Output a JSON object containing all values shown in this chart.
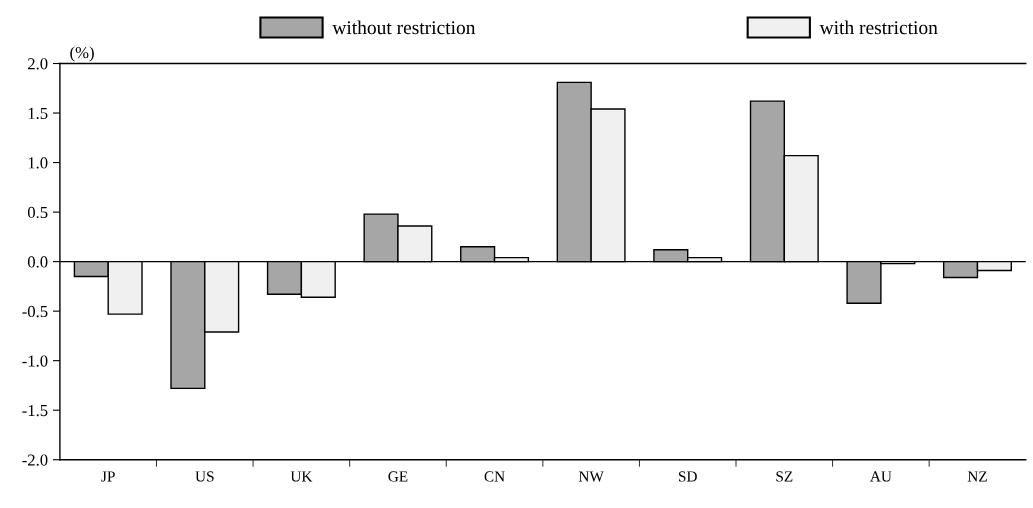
{
  "chart_data": {
    "type": "bar",
    "ylabel": "(%)",
    "categories": [
      "JP",
      "US",
      "UK",
      "GE",
      "CN",
      "NW",
      "SD",
      "SZ",
      "AU",
      "NZ"
    ],
    "series": [
      {
        "name": "without restriction",
        "color": "#a6a6a6",
        "values": [
          -0.15,
          -1.28,
          -0.33,
          0.48,
          0.15,
          1.81,
          0.12,
          1.62,
          -0.42,
          -0.16
        ]
      },
      {
        "name": "with restriction",
        "color": "#f0f0f0",
        "values": [
          -0.53,
          -0.71,
          -0.36,
          0.36,
          0.04,
          1.54,
          0.04,
          1.07,
          -0.02,
          -0.09
        ]
      }
    ],
    "ylim": [
      -2.0,
      2.0
    ],
    "yticks": [
      {
        "value": -2.0,
        "label": "-2.0"
      },
      {
        "value": -1.5,
        "label": "-1.5"
      },
      {
        "value": -1.0,
        "label": "-1.0"
      },
      {
        "value": -0.5,
        "label": "-0.5"
      },
      {
        "value": 0.0,
        "label": "0.0"
      },
      {
        "value": 0.5,
        "label": "0.5"
      },
      {
        "value": 1.0,
        "label": "1.0"
      },
      {
        "value": 1.5,
        "label": "1.5"
      },
      {
        "value": 2.0,
        "label": "2.0"
      }
    ],
    "ref_lines": [
      {
        "axis": "y",
        "value": 0,
        "color": "#000000"
      }
    ],
    "grid": false,
    "legend": "top"
  }
}
